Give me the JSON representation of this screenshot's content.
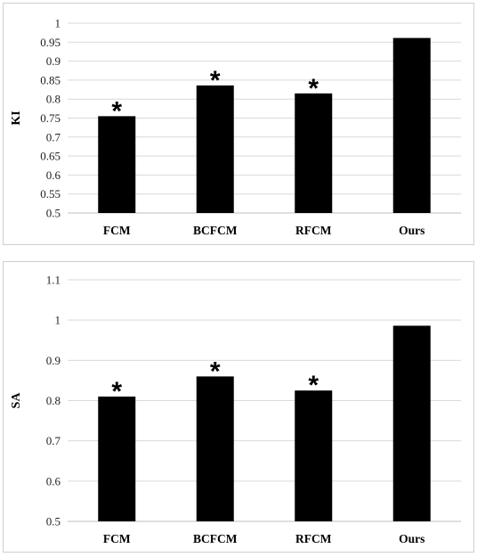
{
  "chart_data": [
    {
      "type": "bar",
      "categories": [
        "FCM",
        "BCFCM",
        "RFCM",
        "Ours"
      ],
      "values": [
        0.755,
        0.836,
        0.815,
        0.961
      ],
      "significance": [
        "*",
        "*",
        "*",
        ""
      ],
      "ylabel": "KI",
      "ylim": [
        0.5,
        1.0
      ],
      "yticks": [
        "0.5",
        "0.55",
        "0.6",
        "0.65",
        "0.7",
        "0.75",
        "0.8",
        "0.85",
        "0.9",
        "0.95",
        "1"
      ],
      "grid": true,
      "bar_color": "#000000"
    },
    {
      "type": "bar",
      "categories": [
        "FCM",
        "BCFCM",
        "RFCM",
        "Ours"
      ],
      "values": [
        0.81,
        0.86,
        0.825,
        0.986
      ],
      "significance": [
        "*",
        "*",
        "*",
        ""
      ],
      "ylabel": "SA",
      "ylim": [
        0.5,
        1.1
      ],
      "yticks": [
        "0.5",
        "0.6",
        "0.7",
        "0.8",
        "0.9",
        "1",
        "1.1"
      ],
      "grid": true,
      "bar_color": "#000000"
    }
  ]
}
